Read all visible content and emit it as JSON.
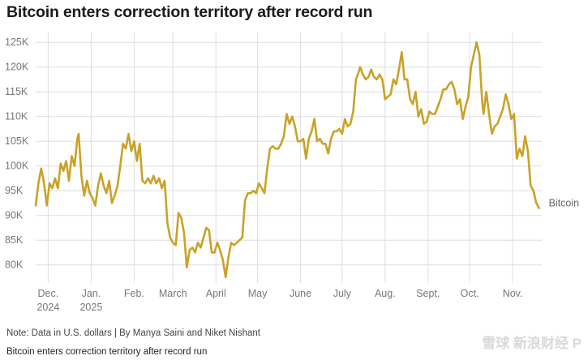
{
  "title": "Bitcoin enters correction territory after record run",
  "note": "Note: Data in U.S. dollars | By Manya Saini and Niket Nishant",
  "caption": "Bitcoin enters correction territory after record run",
  "watermark": "雪球 新浪财经 P",
  "colors": {
    "line": "#C9A227",
    "grid": "#dedede",
    "axis": "#999999"
  },
  "chart_data": {
    "type": "line",
    "title": "Bitcoin enters correction territory after record run",
    "xlabel": "",
    "ylabel": "",
    "ylim": [
      77000,
      127000
    ],
    "yticks": [
      80000,
      85000,
      90000,
      95000,
      100000,
      105000,
      110000,
      115000,
      120000,
      125000
    ],
    "ytick_labels": [
      "80K",
      "85K",
      "90K",
      "95K",
      "100K",
      "105K",
      "110K",
      "115K",
      "120K",
      "125K"
    ],
    "xlim": [
      "2024-11-22",
      "2025-11-22"
    ],
    "xticks": [
      {
        "date": "2024-12-01",
        "line1": "Dec.",
        "line2": "2024"
      },
      {
        "date": "2025-01-01",
        "line1": "Jan.",
        "line2": "2025"
      },
      {
        "date": "2025-02-01",
        "line1": "Feb.",
        "line2": ""
      },
      {
        "date": "2025-03-01",
        "line1": "March",
        "line2": ""
      },
      {
        "date": "2025-04-01",
        "line1": "April",
        "line2": ""
      },
      {
        "date": "2025-05-01",
        "line1": "May",
        "line2": ""
      },
      {
        "date": "2025-06-01",
        "line1": "June",
        "line2": ""
      },
      {
        "date": "2025-07-01",
        "line1": "July",
        "line2": ""
      },
      {
        "date": "2025-08-01",
        "line1": "Aug.",
        "line2": ""
      },
      {
        "date": "2025-09-01",
        "line1": "Sept.",
        "line2": ""
      },
      {
        "date": "2025-10-01",
        "line1": "Oct.",
        "line2": ""
      },
      {
        "date": "2025-11-01",
        "line1": "Nov.",
        "line2": ""
      }
    ],
    "grid": true,
    "series": [
      {
        "name": "Bitcoin",
        "points": [
          [
            "2024-11-22",
            92000
          ],
          [
            "2024-11-24",
            96500
          ],
          [
            "2024-11-26",
            99500
          ],
          [
            "2024-11-28",
            96500
          ],
          [
            "2024-11-30",
            92000
          ],
          [
            "2024-12-02",
            96500
          ],
          [
            "2024-12-04",
            95500
          ],
          [
            "2024-12-06",
            97500
          ],
          [
            "2024-12-08",
            95500
          ],
          [
            "2024-12-10",
            100500
          ],
          [
            "2024-12-12",
            99000
          ],
          [
            "2024-12-14",
            101000
          ],
          [
            "2024-12-16",
            97000
          ],
          [
            "2024-12-18",
            102000
          ],
          [
            "2024-12-20",
            100000
          ],
          [
            "2024-12-22",
            105500
          ],
          [
            "2024-12-23",
            106500
          ],
          [
            "2024-12-25",
            98000
          ],
          [
            "2024-12-27",
            94000
          ],
          [
            "2024-12-29",
            97000
          ],
          [
            "2024-12-31",
            94500
          ],
          [
            "2025-01-02",
            93500
          ],
          [
            "2025-01-04",
            92000
          ],
          [
            "2025-01-06",
            96000
          ],
          [
            "2025-01-08",
            98500
          ],
          [
            "2025-01-10",
            96000
          ],
          [
            "2025-01-12",
            94500
          ],
          [
            "2025-01-14",
            97000
          ],
          [
            "2025-01-16",
            92500
          ],
          [
            "2025-01-18",
            94000
          ],
          [
            "2025-01-20",
            96000
          ],
          [
            "2025-01-22",
            100000
          ],
          [
            "2025-01-24",
            104500
          ],
          [
            "2025-01-26",
            103500
          ],
          [
            "2025-01-28",
            106500
          ],
          [
            "2025-01-30",
            103000
          ],
          [
            "2025-02-01",
            105000
          ],
          [
            "2025-02-03",
            101000
          ],
          [
            "2025-02-05",
            104500
          ],
          [
            "2025-02-07",
            97000
          ],
          [
            "2025-02-09",
            96500
          ],
          [
            "2025-02-11",
            97500
          ],
          [
            "2025-02-13",
            96500
          ],
          [
            "2025-02-15",
            98000
          ],
          [
            "2025-02-17",
            96500
          ],
          [
            "2025-02-19",
            97500
          ],
          [
            "2025-02-21",
            95500
          ],
          [
            "2025-02-23",
            97000
          ],
          [
            "2025-02-25",
            88500
          ],
          [
            "2025-02-27",
            85500
          ],
          [
            "2025-03-01",
            84500
          ],
          [
            "2025-03-03",
            84000
          ],
          [
            "2025-03-05",
            90500
          ],
          [
            "2025-03-07",
            89500
          ],
          [
            "2025-03-09",
            86500
          ],
          [
            "2025-03-11",
            79500
          ],
          [
            "2025-03-13",
            83000
          ],
          [
            "2025-03-15",
            83500
          ],
          [
            "2025-03-17",
            82500
          ],
          [
            "2025-03-19",
            84500
          ],
          [
            "2025-03-21",
            83500
          ],
          [
            "2025-03-23",
            85500
          ],
          [
            "2025-03-25",
            87500
          ],
          [
            "2025-03-27",
            87000
          ],
          [
            "2025-03-29",
            82500
          ],
          [
            "2025-03-31",
            82500
          ],
          [
            "2025-04-02",
            84500
          ],
          [
            "2025-04-04",
            83000
          ],
          [
            "2025-04-06",
            81000
          ],
          [
            "2025-04-08",
            77500
          ],
          [
            "2025-04-10",
            81500
          ],
          [
            "2025-04-12",
            84500
          ],
          [
            "2025-04-14",
            84000
          ],
          [
            "2025-04-16",
            84500
          ],
          [
            "2025-04-18",
            85000
          ],
          [
            "2025-04-20",
            85500
          ],
          [
            "2025-04-22",
            93000
          ],
          [
            "2025-04-24",
            94500
          ],
          [
            "2025-04-26",
            94500
          ],
          [
            "2025-04-28",
            95000
          ],
          [
            "2025-04-30",
            94500
          ],
          [
            "2025-05-02",
            96500
          ],
          [
            "2025-05-04",
            95500
          ],
          [
            "2025-05-06",
            94500
          ],
          [
            "2025-05-08",
            99500
          ],
          [
            "2025-05-10",
            103500
          ],
          [
            "2025-05-12",
            104000
          ],
          [
            "2025-05-14",
            103500
          ],
          [
            "2025-05-16",
            103500
          ],
          [
            "2025-05-18",
            104500
          ],
          [
            "2025-05-20",
            106000
          ],
          [
            "2025-05-22",
            110500
          ],
          [
            "2025-05-24",
            108500
          ],
          [
            "2025-05-26",
            110000
          ],
          [
            "2025-05-28",
            108000
          ],
          [
            "2025-05-30",
            105000
          ],
          [
            "2025-06-01",
            105000
          ],
          [
            "2025-06-03",
            105500
          ],
          [
            "2025-06-05",
            101500
          ],
          [
            "2025-06-07",
            105500
          ],
          [
            "2025-06-09",
            107000
          ],
          [
            "2025-06-11",
            109500
          ],
          [
            "2025-06-13",
            105000
          ],
          [
            "2025-06-15",
            105500
          ],
          [
            "2025-06-17",
            104500
          ],
          [
            "2025-06-19",
            104500
          ],
          [
            "2025-06-21",
            102500
          ],
          [
            "2025-06-23",
            105500
          ],
          [
            "2025-06-25",
            107000
          ],
          [
            "2025-06-27",
            107000
          ],
          [
            "2025-06-29",
            107500
          ],
          [
            "2025-07-01",
            106500
          ],
          [
            "2025-07-03",
            109500
          ],
          [
            "2025-07-05",
            108000
          ],
          [
            "2025-07-07",
            108500
          ],
          [
            "2025-07-09",
            111000
          ],
          [
            "2025-07-11",
            117500
          ],
          [
            "2025-07-13",
            119000
          ],
          [
            "2025-07-14",
            120000
          ],
          [
            "2025-07-16",
            118500
          ],
          [
            "2025-07-18",
            117500
          ],
          [
            "2025-07-20",
            118000
          ],
          [
            "2025-07-22",
            119500
          ],
          [
            "2025-07-24",
            118000
          ],
          [
            "2025-07-26",
            117500
          ],
          [
            "2025-07-28",
            118500
          ],
          [
            "2025-07-30",
            117500
          ],
          [
            "2025-08-01",
            113500
          ],
          [
            "2025-08-03",
            114000
          ],
          [
            "2025-08-05",
            114500
          ],
          [
            "2025-08-07",
            117500
          ],
          [
            "2025-08-09",
            116500
          ],
          [
            "2025-08-11",
            119500
          ],
          [
            "2025-08-13",
            123000
          ],
          [
            "2025-08-15",
            117500
          ],
          [
            "2025-08-17",
            117500
          ],
          [
            "2025-08-19",
            113500
          ],
          [
            "2025-08-21",
            112500
          ],
          [
            "2025-08-23",
            115000
          ],
          [
            "2025-08-25",
            110000
          ],
          [
            "2025-08-27",
            111500
          ],
          [
            "2025-08-29",
            108500
          ],
          [
            "2025-08-31",
            109000
          ],
          [
            "2025-09-02",
            111000
          ],
          [
            "2025-09-04",
            110500
          ],
          [
            "2025-09-06",
            110500
          ],
          [
            "2025-09-08",
            112000
          ],
          [
            "2025-09-10",
            113500
          ],
          [
            "2025-09-12",
            115500
          ],
          [
            "2025-09-14",
            115500
          ],
          [
            "2025-09-16",
            116500
          ],
          [
            "2025-09-18",
            117000
          ],
          [
            "2025-09-20",
            115500
          ],
          [
            "2025-09-22",
            112500
          ],
          [
            "2025-09-24",
            113500
          ],
          [
            "2025-09-26",
            109500
          ],
          [
            "2025-09-28",
            112000
          ],
          [
            "2025-09-30",
            114000
          ],
          [
            "2025-10-02",
            120000
          ],
          [
            "2025-10-04",
            122500
          ],
          [
            "2025-10-06",
            125000
          ],
          [
            "2025-10-08",
            122500
          ],
          [
            "2025-10-10",
            113000
          ],
          [
            "2025-10-11",
            110500
          ],
          [
            "2025-10-13",
            115000
          ],
          [
            "2025-10-15",
            110500
          ],
          [
            "2025-10-17",
            106500
          ],
          [
            "2025-10-19",
            108000
          ],
          [
            "2025-10-21",
            108500
          ],
          [
            "2025-10-23",
            110000
          ],
          [
            "2025-10-25",
            111500
          ],
          [
            "2025-10-27",
            114500
          ],
          [
            "2025-10-29",
            112500
          ],
          [
            "2025-10-31",
            109500
          ],
          [
            "2025-11-02",
            110500
          ],
          [
            "2025-11-04",
            101500
          ],
          [
            "2025-11-06",
            103500
          ],
          [
            "2025-11-08",
            102000
          ],
          [
            "2025-11-10",
            106000
          ],
          [
            "2025-11-12",
            103000
          ],
          [
            "2025-11-14",
            96000
          ],
          [
            "2025-11-16",
            95000
          ],
          [
            "2025-11-18",
            92500
          ],
          [
            "2025-11-20",
            91500
          ]
        ]
      }
    ]
  }
}
